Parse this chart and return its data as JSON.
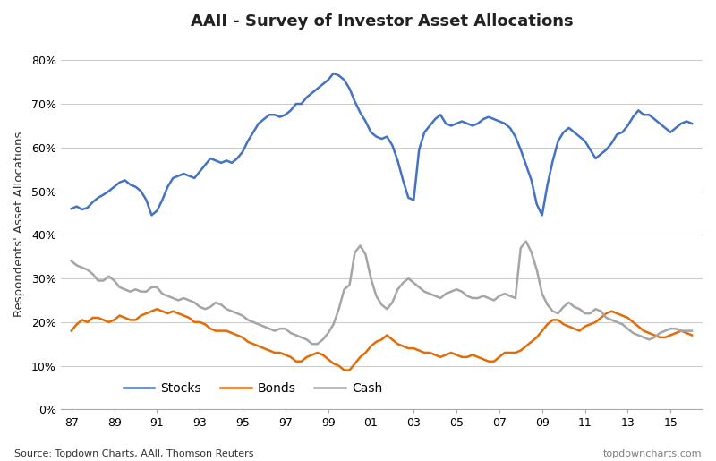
{
  "title": "AAII - Survey of Investor Asset Allocations",
  "ylabel": "Respondents' Asset Allocations",
  "source_left": "Source: Topdown Charts, AAll, Thomson Reuters",
  "source_right": "topdowncharts.com",
  "x_tick_values": [
    1987,
    1989,
    1991,
    1993,
    1995,
    1997,
    1999,
    2001,
    2003,
    2005,
    2007,
    2009,
    2011,
    2013,
    2015
  ],
  "x_tick_labels": [
    "87",
    "89",
    "91",
    "93",
    "95",
    "97",
    "99",
    "01",
    "03",
    "05",
    "07",
    "09",
    "11",
    "13",
    "15"
  ],
  "ylim": [
    0,
    85
  ],
  "yticks": [
    0,
    10,
    20,
    30,
    40,
    50,
    60,
    70,
    80
  ],
  "stocks_color": "#4472C4",
  "bonds_color": "#E36C09",
  "cash_color": "#A5A5A5",
  "background_color": "#FFFFFF",
  "grid_color": "#CCCCCC",
  "legend_labels": [
    "Stocks",
    "Bonds",
    "Cash"
  ],
  "x": [
    1987.0,
    1987.25,
    1987.5,
    1987.75,
    1988.0,
    1988.25,
    1988.5,
    1988.75,
    1989.0,
    1989.25,
    1989.5,
    1989.75,
    1990.0,
    1990.25,
    1990.5,
    1990.75,
    1991.0,
    1991.25,
    1991.5,
    1991.75,
    1992.0,
    1992.25,
    1992.5,
    1992.75,
    1993.0,
    1993.25,
    1993.5,
    1993.75,
    1994.0,
    1994.25,
    1994.5,
    1994.75,
    1995.0,
    1995.25,
    1995.5,
    1995.75,
    1996.0,
    1996.25,
    1996.5,
    1996.75,
    1997.0,
    1997.25,
    1997.5,
    1997.75,
    1998.0,
    1998.25,
    1998.5,
    1998.75,
    1999.0,
    1999.25,
    1999.5,
    1999.75,
    2000.0,
    2000.25,
    2000.5,
    2000.75,
    2001.0,
    2001.25,
    2001.5,
    2001.75,
    2002.0,
    2002.25,
    2002.5,
    2002.75,
    2003.0,
    2003.25,
    2003.5,
    2003.75,
    2004.0,
    2004.25,
    2004.5,
    2004.75,
    2005.0,
    2005.25,
    2005.5,
    2005.75,
    2006.0,
    2006.25,
    2006.5,
    2006.75,
    2007.0,
    2007.25,
    2007.5,
    2007.75,
    2008.0,
    2008.25,
    2008.5,
    2008.75,
    2009.0,
    2009.25,
    2009.5,
    2009.75,
    2010.0,
    2010.25,
    2010.5,
    2010.75,
    2011.0,
    2011.25,
    2011.5,
    2011.75,
    2012.0,
    2012.25,
    2012.5,
    2012.75,
    2013.0,
    2013.25,
    2013.5,
    2013.75,
    2014.0,
    2014.25,
    2014.5,
    2014.75,
    2015.0,
    2015.25,
    2015.5,
    2015.75,
    2016.0
  ],
  "stocks_y": [
    46.0,
    46.5,
    45.8,
    46.2,
    47.5,
    48.5,
    49.2,
    50.0,
    51.0,
    52.0,
    52.5,
    51.5,
    51.0,
    50.0,
    48.0,
    44.5,
    45.5,
    48.0,
    51.0,
    53.0,
    53.5,
    54.0,
    53.5,
    53.0,
    54.5,
    56.0,
    57.5,
    57.0,
    56.5,
    57.0,
    56.5,
    57.5,
    59.0,
    61.5,
    63.5,
    65.5,
    66.5,
    67.5,
    67.5,
    67.0,
    67.5,
    68.5,
    70.0,
    70.0,
    71.5,
    72.5,
    73.5,
    74.5,
    75.5,
    77.0,
    76.5,
    75.5,
    73.5,
    70.5,
    68.0,
    66.0,
    63.5,
    62.5,
    62.0,
    62.5,
    60.5,
    57.0,
    52.5,
    48.5,
    48.0,
    59.5,
    63.5,
    65.0,
    66.5,
    67.5,
    65.5,
    65.0,
    65.5,
    66.0,
    65.5,
    65.0,
    65.5,
    66.5,
    67.0,
    66.5,
    66.0,
    65.5,
    64.5,
    62.5,
    59.5,
    56.0,
    52.5,
    47.0,
    44.5,
    51.5,
    57.0,
    61.5,
    63.5,
    64.5,
    63.5,
    62.5,
    61.5,
    59.5,
    57.5,
    58.5,
    59.5,
    61.0,
    63.0,
    63.5,
    65.0,
    67.0,
    68.5,
    67.5,
    67.5,
    66.5,
    65.5,
    64.5,
    63.5,
    64.5,
    65.5,
    66.0,
    65.5
  ],
  "bonds_y": [
    18.0,
    19.5,
    20.5,
    20.0,
    21.0,
    21.0,
    20.5,
    20.0,
    20.5,
    21.5,
    21.0,
    20.5,
    20.5,
    21.5,
    22.0,
    22.5,
    23.0,
    22.5,
    22.0,
    22.5,
    22.0,
    21.5,
    21.0,
    20.0,
    20.0,
    19.5,
    18.5,
    18.0,
    18.0,
    18.0,
    17.5,
    17.0,
    16.5,
    15.5,
    15.0,
    14.5,
    14.0,
    13.5,
    13.0,
    13.0,
    12.5,
    12.0,
    11.0,
    11.0,
    12.0,
    12.5,
    13.0,
    12.5,
    11.5,
    10.5,
    10.0,
    9.0,
    9.0,
    10.5,
    12.0,
    13.0,
    14.5,
    15.5,
    16.0,
    17.0,
    16.0,
    15.0,
    14.5,
    14.0,
    14.0,
    13.5,
    13.0,
    13.0,
    12.5,
    12.0,
    12.5,
    13.0,
    12.5,
    12.0,
    12.0,
    12.5,
    12.0,
    11.5,
    11.0,
    11.0,
    12.0,
    13.0,
    13.0,
    13.0,
    13.5,
    14.5,
    15.5,
    16.5,
    18.0,
    19.5,
    20.5,
    20.5,
    19.5,
    19.0,
    18.5,
    18.0,
    19.0,
    19.5,
    20.0,
    21.0,
    22.0,
    22.5,
    22.0,
    21.5,
    21.0,
    20.0,
    19.0,
    18.0,
    17.5,
    17.0,
    16.5,
    16.5,
    17.0,
    17.5,
    18.0,
    17.5,
    17.0
  ],
  "cash_y": [
    34.0,
    33.0,
    32.5,
    32.0,
    31.0,
    29.5,
    29.5,
    30.5,
    29.5,
    28.0,
    27.5,
    27.0,
    27.5,
    27.0,
    27.0,
    28.0,
    28.0,
    26.5,
    26.0,
    25.5,
    25.0,
    25.5,
    25.0,
    24.5,
    23.5,
    23.0,
    23.5,
    24.5,
    24.0,
    23.0,
    22.5,
    22.0,
    21.5,
    20.5,
    20.0,
    19.5,
    19.0,
    18.5,
    18.0,
    18.5,
    18.5,
    17.5,
    17.0,
    16.5,
    16.0,
    15.0,
    15.0,
    16.0,
    17.5,
    19.5,
    23.0,
    27.5,
    28.5,
    36.0,
    37.5,
    35.5,
    30.0,
    26.0,
    24.0,
    23.0,
    24.5,
    27.5,
    29.0,
    30.0,
    29.0,
    28.0,
    27.0,
    26.5,
    26.0,
    25.5,
    26.5,
    27.0,
    27.5,
    27.0,
    26.0,
    25.5,
    25.5,
    26.0,
    25.5,
    25.0,
    26.0,
    26.5,
    26.0,
    25.5,
    37.0,
    38.5,
    36.0,
    32.0,
    26.5,
    24.0,
    22.5,
    22.0,
    23.5,
    24.5,
    23.5,
    23.0,
    22.0,
    22.0,
    23.0,
    22.5,
    21.0,
    20.5,
    20.0,
    19.5,
    18.5,
    17.5,
    17.0,
    16.5,
    16.0,
    16.5,
    17.5,
    18.0,
    18.5,
    18.5,
    18.0,
    18.0,
    18.0
  ]
}
